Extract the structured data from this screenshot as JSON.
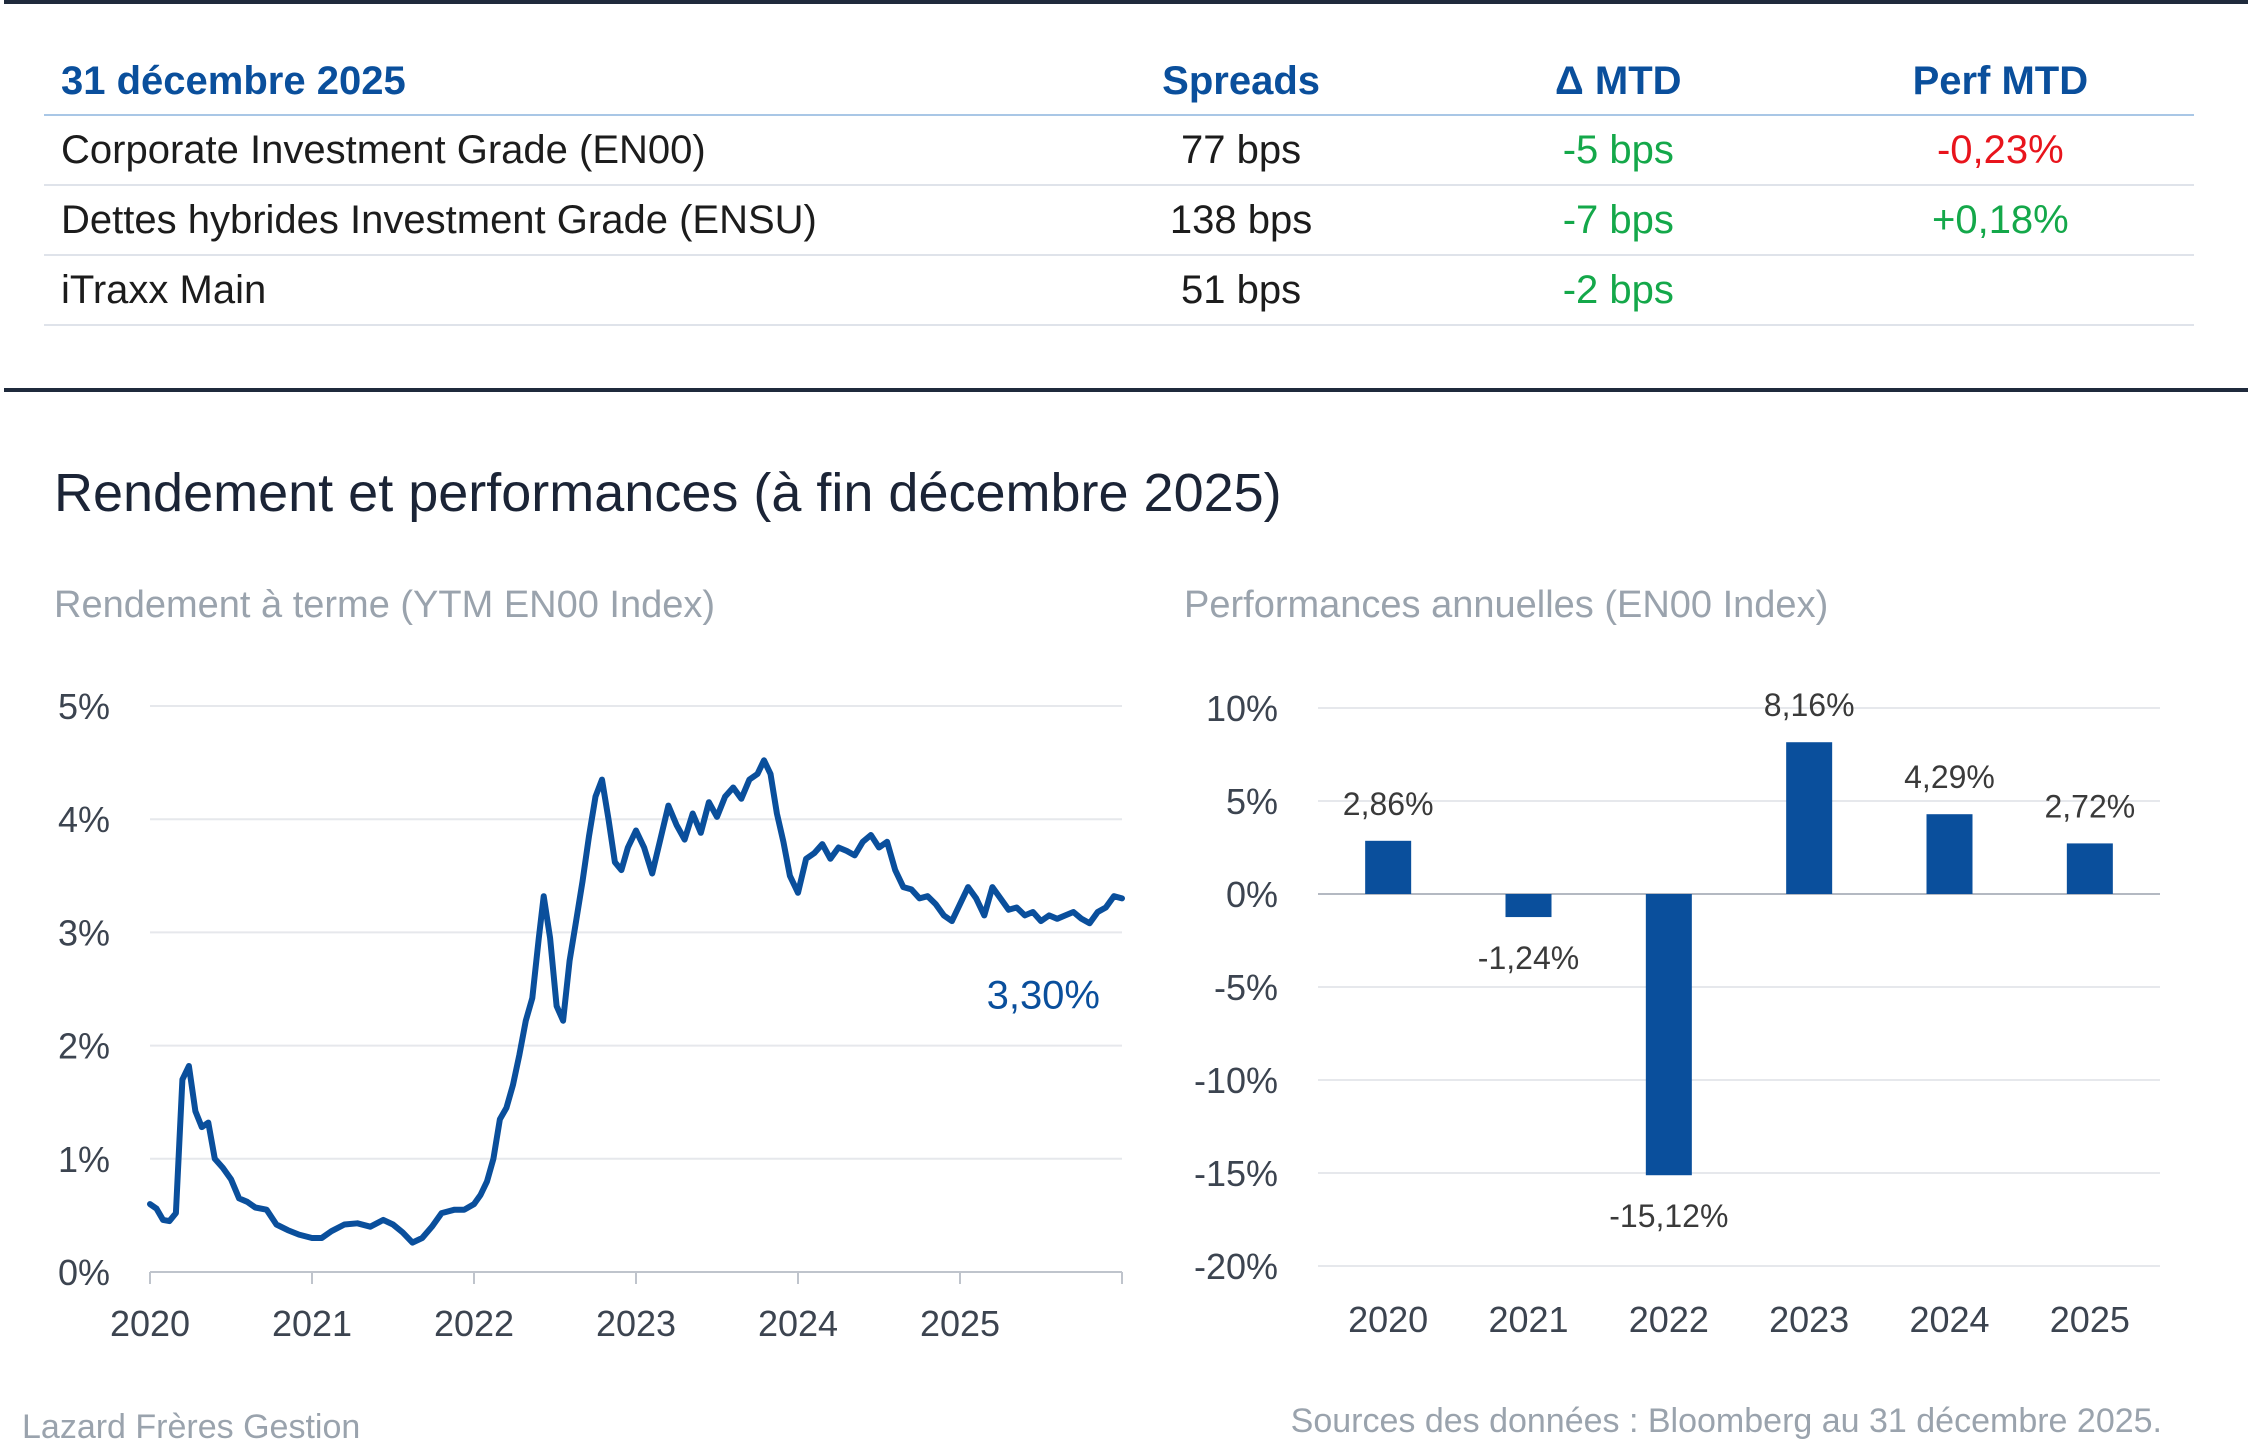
{
  "table": {
    "headers": [
      "31 décembre 2025",
      "Spreads",
      "Δ MTD",
      "Perf MTD"
    ],
    "rows": [
      {
        "name": "Corporate Investment Grade (EN00)",
        "spread": "77 bps",
        "delta": "-5 bps",
        "perf": "-0,23%"
      },
      {
        "name": "Dettes hybrides Investment Grade (ENSU)",
        "spread": "138 bps",
        "delta": "-7 bps",
        "perf": "+0,18%"
      },
      {
        "name": "iTraxx Main",
        "spread": "51 bps",
        "delta": "-2 bps",
        "perf": ""
      }
    ]
  },
  "section_title": "Rendement et performances (à fin décembre 2025)",
  "chart_data": [
    {
      "type": "line",
      "title": "Rendement à terme (YTM EN00 Index)",
      "ylim": [
        0,
        5
      ],
      "yticks": [
        "0%",
        "1%",
        "2%",
        "3%",
        "4%",
        "5%"
      ],
      "xlim": [
        2020,
        2026
      ],
      "xticks": [
        "2020",
        "2021",
        "2022",
        "2023",
        "2024",
        "2025"
      ],
      "last_value_label": "3,30%",
      "color": "#0a4f9c",
      "series": [
        {
          "name": "YTM EN00",
          "points": [
            [
              2020.0,
              0.6
            ],
            [
              2020.04,
              0.56
            ],
            [
              2020.08,
              0.46
            ],
            [
              2020.12,
              0.45
            ],
            [
              2020.16,
              0.52
            ],
            [
              2020.2,
              1.7
            ],
            [
              2020.24,
              1.82
            ],
            [
              2020.28,
              1.42
            ],
            [
              2020.32,
              1.28
            ],
            [
              2020.36,
              1.32
            ],
            [
              2020.4,
              1.0
            ],
            [
              2020.45,
              0.92
            ],
            [
              2020.5,
              0.82
            ],
            [
              2020.55,
              0.65
            ],
            [
              2020.6,
              0.62
            ],
            [
              2020.65,
              0.57
            ],
            [
              2020.72,
              0.55
            ],
            [
              2020.78,
              0.42
            ],
            [
              2020.85,
              0.37
            ],
            [
              2020.92,
              0.33
            ],
            [
              2021.0,
              0.3
            ],
            [
              2021.06,
              0.3
            ],
            [
              2021.12,
              0.36
            ],
            [
              2021.2,
              0.42
            ],
            [
              2021.28,
              0.43
            ],
            [
              2021.36,
              0.4
            ],
            [
              2021.44,
              0.46
            ],
            [
              2021.5,
              0.42
            ],
            [
              2021.56,
              0.35
            ],
            [
              2021.62,
              0.26
            ],
            [
              2021.68,
              0.3
            ],
            [
              2021.74,
              0.4
            ],
            [
              2021.8,
              0.52
            ],
            [
              2021.88,
              0.55
            ],
            [
              2021.94,
              0.55
            ],
            [
              2022.0,
              0.6
            ],
            [
              2022.04,
              0.68
            ],
            [
              2022.08,
              0.8
            ],
            [
              2022.12,
              1.0
            ],
            [
              2022.16,
              1.35
            ],
            [
              2022.2,
              1.45
            ],
            [
              2022.24,
              1.65
            ],
            [
              2022.28,
              1.92
            ],
            [
              2022.32,
              2.22
            ],
            [
              2022.36,
              2.42
            ],
            [
              2022.4,
              2.95
            ],
            [
              2022.43,
              3.32
            ],
            [
              2022.47,
              2.95
            ],
            [
              2022.51,
              2.35
            ],
            [
              2022.55,
              2.22
            ],
            [
              2022.59,
              2.75
            ],
            [
              2022.63,
              3.1
            ],
            [
              2022.67,
              3.45
            ],
            [
              2022.71,
              3.85
            ],
            [
              2022.75,
              4.2
            ],
            [
              2022.79,
              4.35
            ],
            [
              2022.83,
              4.0
            ],
            [
              2022.87,
              3.62
            ],
            [
              2022.91,
              3.55
            ],
            [
              2022.95,
              3.75
            ],
            [
              2023.0,
              3.9
            ],
            [
              2023.05,
              3.75
            ],
            [
              2023.1,
              3.52
            ],
            [
              2023.15,
              3.82
            ],
            [
              2023.2,
              4.12
            ],
            [
              2023.25,
              3.95
            ],
            [
              2023.3,
              3.82
            ],
            [
              2023.35,
              4.05
            ],
            [
              2023.4,
              3.88
            ],
            [
              2023.45,
              4.15
            ],
            [
              2023.5,
              4.02
            ],
            [
              2023.55,
              4.2
            ],
            [
              2023.6,
              4.28
            ],
            [
              2023.65,
              4.18
            ],
            [
              2023.7,
              4.35
            ],
            [
              2023.75,
              4.4
            ],
            [
              2023.79,
              4.52
            ],
            [
              2023.83,
              4.4
            ],
            [
              2023.87,
              4.05
            ],
            [
              2023.91,
              3.8
            ],
            [
              2023.95,
              3.5
            ],
            [
              2024.0,
              3.35
            ],
            [
              2024.05,
              3.65
            ],
            [
              2024.1,
              3.7
            ],
            [
              2024.15,
              3.78
            ],
            [
              2024.2,
              3.65
            ],
            [
              2024.25,
              3.75
            ],
            [
              2024.3,
              3.72
            ],
            [
              2024.35,
              3.68
            ],
            [
              2024.4,
              3.8
            ],
            [
              2024.45,
              3.86
            ],
            [
              2024.5,
              3.75
            ],
            [
              2024.55,
              3.8
            ],
            [
              2024.6,
              3.55
            ],
            [
              2024.65,
              3.4
            ],
            [
              2024.7,
              3.38
            ],
            [
              2024.75,
              3.3
            ],
            [
              2024.8,
              3.32
            ],
            [
              2024.85,
              3.25
            ],
            [
              2024.9,
              3.15
            ],
            [
              2024.95,
              3.1
            ],
            [
              2025.0,
              3.25
            ],
            [
              2025.05,
              3.4
            ],
            [
              2025.1,
              3.3
            ],
            [
              2025.15,
              3.15
            ],
            [
              2025.2,
              3.4
            ],
            [
              2025.25,
              3.3
            ],
            [
              2025.3,
              3.2
            ],
            [
              2025.35,
              3.22
            ],
            [
              2025.4,
              3.15
            ],
            [
              2025.45,
              3.18
            ],
            [
              2025.5,
              3.1
            ],
            [
              2025.55,
              3.15
            ],
            [
              2025.6,
              3.12
            ],
            [
              2025.65,
              3.15
            ],
            [
              2025.7,
              3.18
            ],
            [
              2025.75,
              3.12
            ],
            [
              2025.8,
              3.08
            ],
            [
              2025.85,
              3.18
            ],
            [
              2025.9,
              3.22
            ],
            [
              2025.95,
              3.32
            ],
            [
              2026.0,
              3.3
            ]
          ]
        }
      ]
    },
    {
      "type": "bar",
      "title": "Performances annuelles (EN00 Index)",
      "categories": [
        "2020",
        "2021",
        "2022",
        "2023",
        "2024",
        "2025"
      ],
      "values": [
        2.86,
        -1.24,
        -15.12,
        8.16,
        4.29,
        2.72
      ],
      "value_labels": [
        "2,86%",
        "-1,24%",
        "-15,12%",
        "8,16%",
        "4,29%",
        "2,72%"
      ],
      "ylim": [
        -20,
        10
      ],
      "yticks": [
        "-20%",
        "-15%",
        "-10%",
        "-5%",
        "0%",
        "5%",
        "10%"
      ],
      "color": "#0a4f9c"
    }
  ],
  "footer": {
    "left": "Lazard Frères Gestion",
    "right": "Sources des données : Bloomberg au 31 décembre 2025."
  }
}
